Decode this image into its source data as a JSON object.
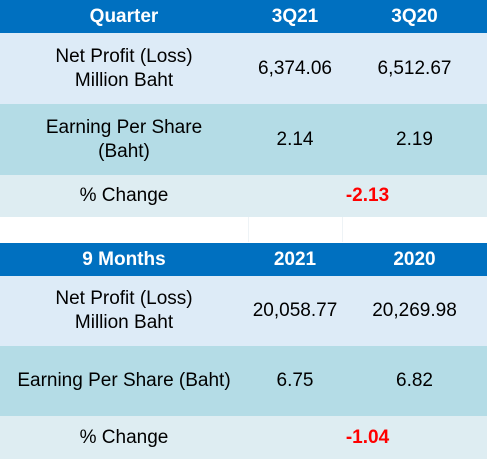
{
  "quarter_table": {
    "header": [
      "Quarter",
      "3Q21",
      "3Q20"
    ],
    "rows": [
      {
        "label": "Net Profit (Loss) Million Baht",
        "v1": "6,374.06",
        "v2": "6,512.67"
      },
      {
        "label": "Earning Per Share (Baht)",
        "v1": "2.14",
        "v2": "2.19"
      }
    ],
    "change_label": "% Change",
    "change_value": "-2.13"
  },
  "nine_month_table": {
    "header": [
      "9 Months",
      "2021",
      "2020"
    ],
    "rows": [
      {
        "label": "Net Profit (Loss) Million Baht",
        "v1": "20,058.77",
        "v2": "20,269.98"
      },
      {
        "label": "Earning Per Share (Baht)",
        "v1": "6.75",
        "v2": "6.82"
      }
    ],
    "change_label": "% Change",
    "change_value": "-1.04"
  },
  "colors": {
    "header_bg": "#0070c0",
    "row_light": "#ddebf7",
    "row_mid": "#b4dce6",
    "negative": "#ff0000"
  }
}
